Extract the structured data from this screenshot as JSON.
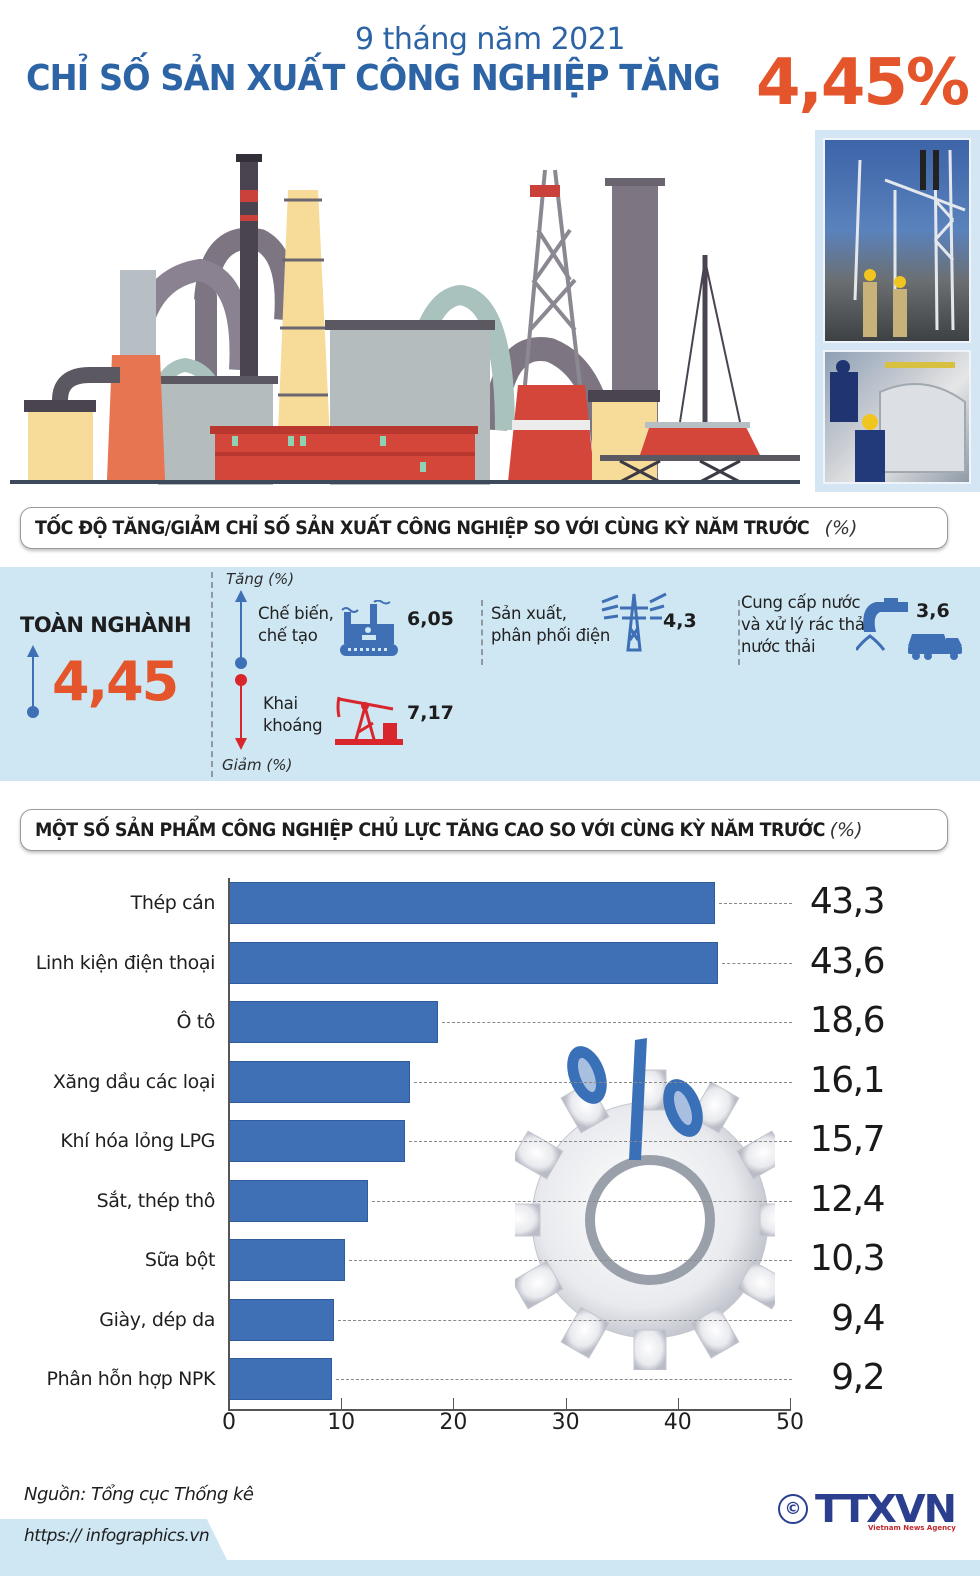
{
  "header": {
    "subtitle": "9 tháng năm 2021",
    "title": "CHỈ SỐ SẢN XUẤT CÔNG NGHIỆP TĂNG",
    "headline_value": "4,45%"
  },
  "colors": {
    "title_blue": "#2d64a6",
    "accent_orange": "#e4552b",
    "bar_blue": "#3f6fb5",
    "band_blue": "#cfe6f3",
    "up_arrow": "#3f6fb5",
    "down_arrow": "#d8262c",
    "logo_navy": "#2c3f8f"
  },
  "illustration": {
    "factory": "factory-illustration",
    "photos": [
      "power-substation-workers-photo",
      "car-assembly-workers-photo"
    ]
  },
  "growth_section": {
    "title": "TỐC ĐỘ TĂNG/GIẢM CHỈ SỐ SẢN XUẤT CÔNG NGHIỆP SO VỚI CÙNG KỲ NĂM TRƯỚC",
    "unit": "(%)",
    "total": {
      "label": "TOÀN NGHÀNH",
      "value": "4,45",
      "direction": "up"
    },
    "increase_label": "Tăng (%)",
    "decrease_label": "Giảm (%)",
    "sectors": [
      {
        "line1": "Chế biến,",
        "line2": "chế tạo",
        "value": "6,05",
        "direction": "up",
        "icon": "factory-icon"
      },
      {
        "line1": "Khai",
        "line2": "khoáng",
        "value": "7,17",
        "direction": "down",
        "icon": "oil-pump-icon"
      },
      {
        "line1": "Sản xuất,",
        "line2": "phân phối điện",
        "value": "4,3",
        "direction": "up",
        "icon": "power-tower-icon"
      },
      {
        "line1": "Cung cấp nước",
        "line2": "và xử lý rác thải,",
        "line3": "nước thải",
        "value": "3,6",
        "direction": "up",
        "icon": "water-tap-truck-icon"
      }
    ]
  },
  "products_section": {
    "title": "MỘT SỐ SẢN PHẨM CÔNG NGHIỆP CHỦ LỰC TĂNG CAO SO VỚI CÙNG KỲ NĂM TRƯỚC",
    "unit": "(%)"
  },
  "chart_data": {
    "type": "bar",
    "orientation": "horizontal",
    "title": "MỘT SỐ SẢN PHẨM CÔNG NGHIỆP CHỦ LỰC TĂNG CAO SO VỚI CÙNG KỲ NĂM TRƯỚC (%)",
    "xlabel": "",
    "ylabel": "",
    "categories": [
      "Thép cán",
      "Linh kiện điện thoại",
      "Ô tô",
      "Xăng dầu các loại",
      "Khí hóa lỏng LPG",
      "Sắt, thép thô",
      "Sữa bột",
      "Giày, dép da",
      "Phân hỗn hợp NPK"
    ],
    "values": [
      43.3,
      43.6,
      18.6,
      16.1,
      15.7,
      12.4,
      10.3,
      9.4,
      9.2
    ],
    "value_labels": [
      "43,3",
      "43,6",
      "18,6",
      "16,1",
      "15,7",
      "12,4",
      "10,3",
      "9,4",
      "9,2"
    ],
    "xlim": [
      0,
      50
    ],
    "xticks": [
      "0",
      "10",
      "20",
      "30",
      "40",
      "50"
    ],
    "grid": false,
    "leader_lines": "dashed",
    "decoration": "gear-with-percent-sign"
  },
  "footer": {
    "source": "Nguồn: Tổng cục Thống kê",
    "url": "https:// infographics.vn",
    "copyright": "©",
    "logo": "TTXVN",
    "logo_sub": "Vietnam News Agency"
  }
}
